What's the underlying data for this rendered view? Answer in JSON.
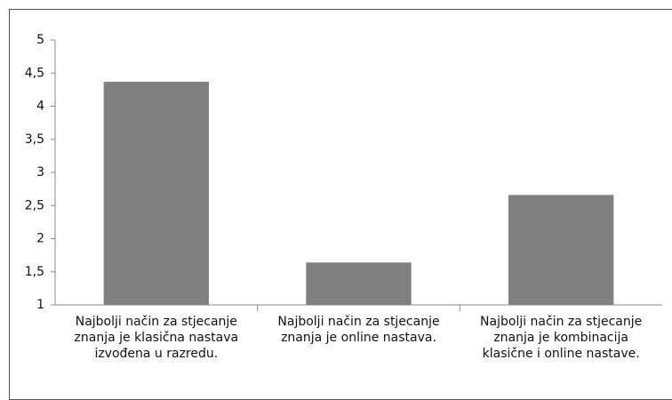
{
  "chart_data": {
    "type": "bar",
    "categories": [
      "Najbolji način za stjecanje znanja je klasična nastava izvođena u razredu.",
      "Najbolji način za stjecanje znanja je online nastava.",
      "Najbolji način za stjecanje znanja je kombinacija klasične i online nastave."
    ],
    "values": [
      4.37,
      1.64,
      2.66
    ],
    "color": "#808080",
    "ylim": [
      1,
      5
    ],
    "yticks": [
      1,
      {
        "value": 1.5,
        "label": "1,5"
      },
      2,
      {
        "value": 2.5,
        "label": "2,5"
      },
      3,
      {
        "value": 3.5,
        "label": "3,5"
      },
      4,
      {
        "value": 4.5,
        "label": "4,5"
      },
      5
    ],
    "grid": false
  }
}
